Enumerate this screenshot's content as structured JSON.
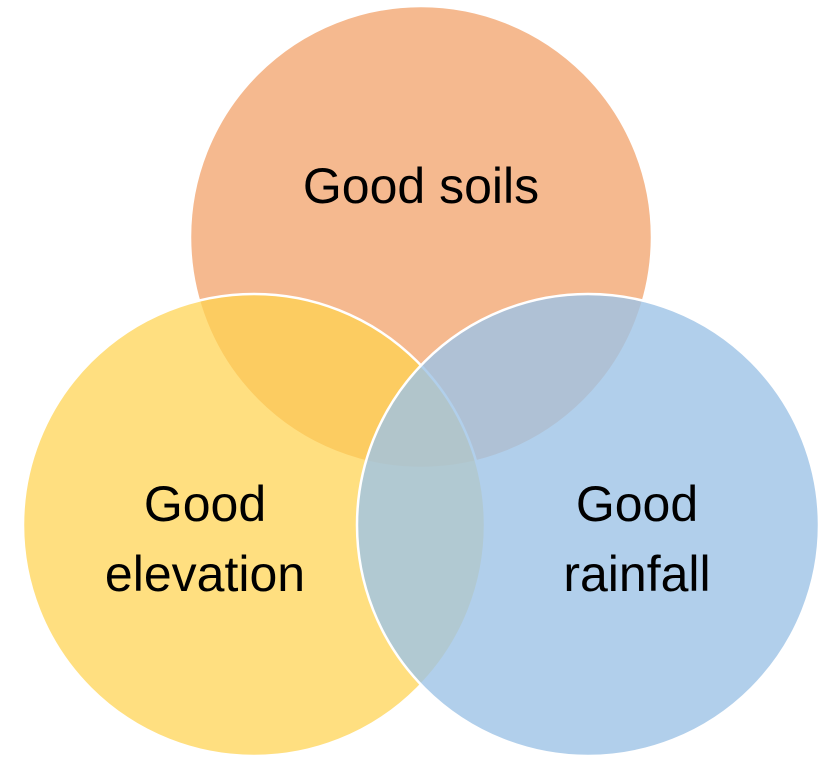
{
  "circles": [
    {
      "label": [
        "Good soils"
      ]
    },
    {
      "label": [
        "Good",
        "elevation"
      ]
    },
    {
      "label": [
        "Good",
        "rainfall"
      ]
    }
  ]
}
